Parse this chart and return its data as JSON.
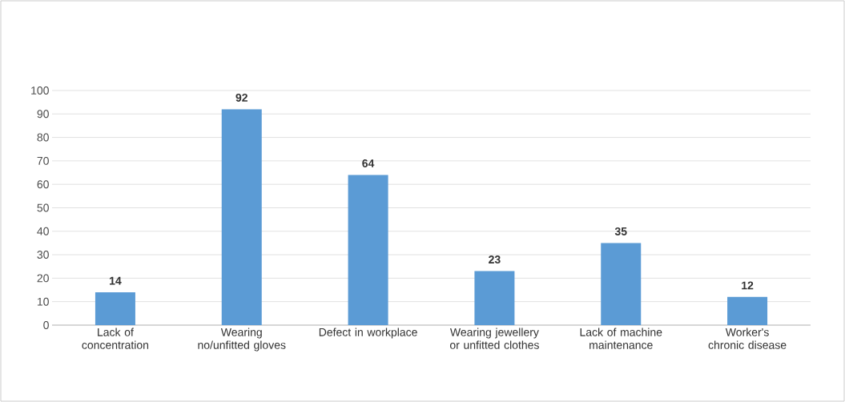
{
  "chart_data": {
    "type": "bar",
    "categories": [
      "Lack of concentration",
      "Wearing no/unfitted gloves",
      "Defect in workplace",
      "Wearing jewellery or unfitted clothes",
      "Lack of machine maintenance",
      "Worker's chronic disease"
    ],
    "values": [
      14,
      92,
      64,
      23,
      35,
      12
    ],
    "color": "#5b9bd5",
    "ylim": [
      0,
      100
    ],
    "yticks": [
      0,
      10,
      20,
      30,
      40,
      50,
      60,
      70,
      80,
      90,
      100
    ],
    "grid": "y",
    "data_labels": true
  }
}
